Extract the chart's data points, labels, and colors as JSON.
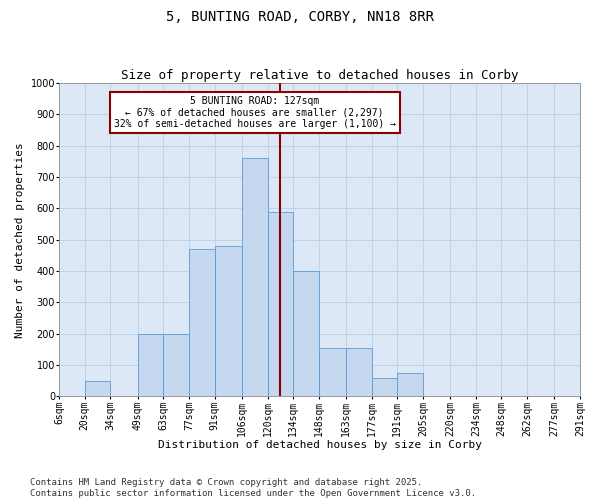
{
  "title": "5, BUNTING ROAD, CORBY, NN18 8RR",
  "subtitle": "Size of property relative to detached houses in Corby",
  "xlabel": "Distribution of detached houses by size in Corby",
  "ylabel": "Number of detached properties",
  "bins": [
    "6sqm",
    "20sqm",
    "34sqm",
    "49sqm",
    "63sqm",
    "77sqm",
    "91sqm",
    "106sqm",
    "120sqm",
    "134sqm",
    "148sqm",
    "163sqm",
    "177sqm",
    "191sqm",
    "205sqm",
    "220sqm",
    "234sqm",
    "248sqm",
    "262sqm",
    "277sqm",
    "291sqm"
  ],
  "bin_edges": [
    6,
    20,
    34,
    49,
    63,
    77,
    91,
    106,
    120,
    134,
    148,
    163,
    177,
    191,
    205,
    220,
    234,
    248,
    262,
    277,
    291
  ],
  "heights": [
    0,
    50,
    0,
    200,
    200,
    470,
    480,
    760,
    590,
    400,
    155,
    155,
    60,
    75,
    0,
    0,
    0,
    0,
    0,
    0
  ],
  "bar_color": "#c5d8f0",
  "bar_edge_color": "#5b9bd5",
  "vline_x": 127,
  "vline_color": "#8b0000",
  "annotation_line1": "5 BUNTING ROAD: 127sqm",
  "annotation_line2": "← 67% of detached houses are smaller (2,297)",
  "annotation_line3": "32% of semi-detached houses are larger (1,100) →",
  "annotation_box_color": "#8b0000",
  "annotation_fill": "white",
  "ylim": [
    0,
    1000
  ],
  "yticks": [
    0,
    100,
    200,
    300,
    400,
    500,
    600,
    700,
    800,
    900,
    1000
  ],
  "grid_color": "#b8cfe8",
  "bg_color": "#dce8f5",
  "footer": "Contains HM Land Registry data © Crown copyright and database right 2025.\nContains public sector information licensed under the Open Government Licence v3.0.",
  "title_fontsize": 10,
  "subtitle_fontsize": 9,
  "axis_label_fontsize": 8,
  "tick_fontsize": 7,
  "annot_fontsize": 7,
  "footer_fontsize": 6.5
}
